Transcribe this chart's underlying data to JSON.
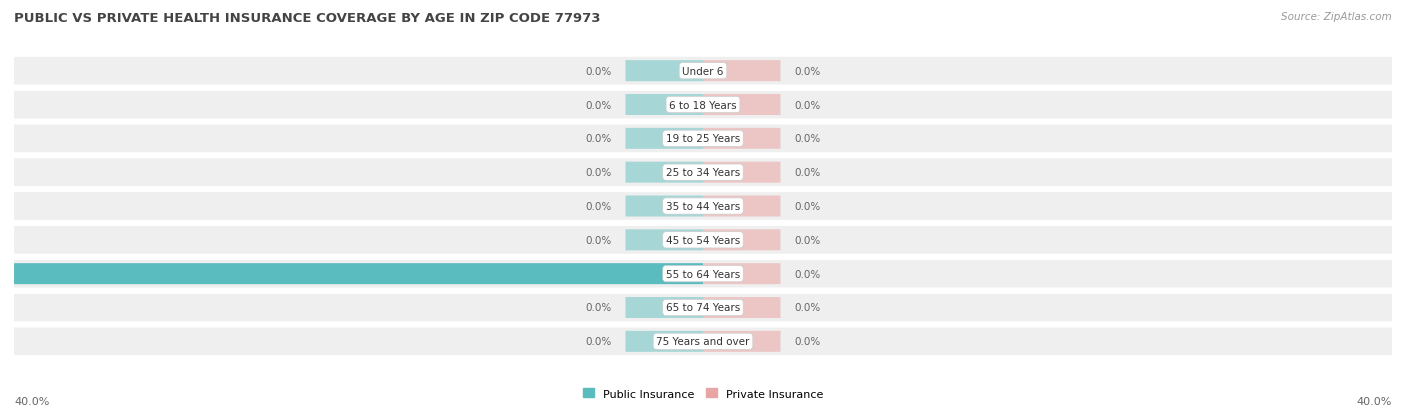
{
  "title": "PUBLIC VS PRIVATE HEALTH INSURANCE COVERAGE BY AGE IN ZIP CODE 77973",
  "source": "Source: ZipAtlas.com",
  "categories": [
    "Under 6",
    "6 to 18 Years",
    "19 to 25 Years",
    "25 to 34 Years",
    "35 to 44 Years",
    "45 to 54 Years",
    "55 to 64 Years",
    "65 to 74 Years",
    "75 Years and over"
  ],
  "public_values": [
    0.0,
    0.0,
    0.0,
    0.0,
    0.0,
    0.0,
    40.0,
    0.0,
    0.0
  ],
  "private_values": [
    0.0,
    0.0,
    0.0,
    0.0,
    0.0,
    0.0,
    0.0,
    0.0,
    0.0
  ],
  "public_color": "#5bbcbf",
  "private_color": "#e8a5a5",
  "axis_limit": 40.0,
  "bg_row_color": "#efefef",
  "stub_pub_color": "#8ecece",
  "stub_priv_color": "#ebb8b8",
  "title_color": "#444444",
  "source_color": "#999999",
  "value_label_color": "#666666",
  "center_label_color": "#333333"
}
